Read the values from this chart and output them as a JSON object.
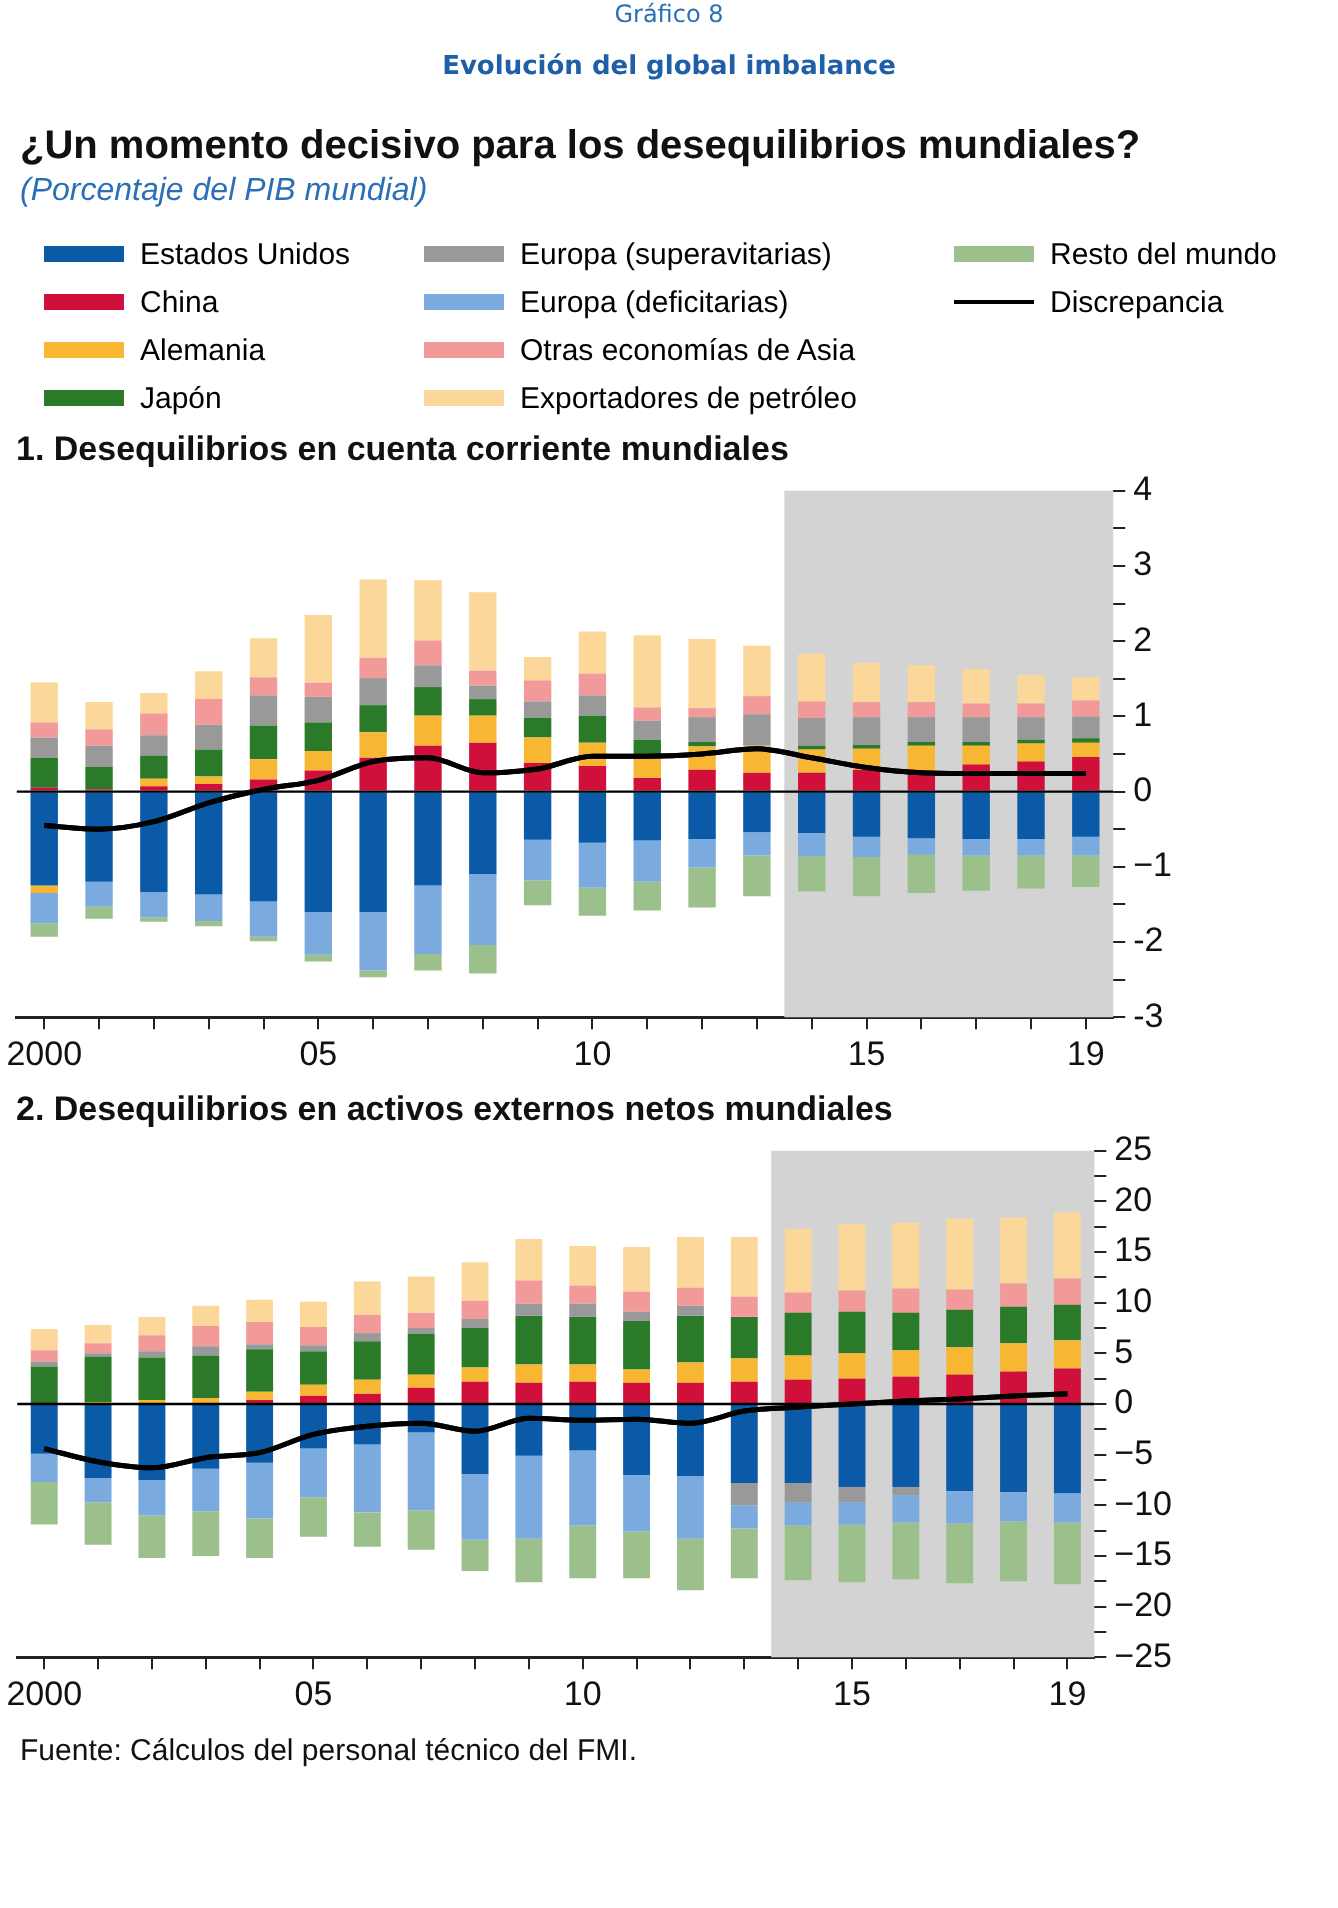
{
  "chart_data": [
    {
      "type": "bar",
      "title": "1. Desequilibrios en cuenta corriente mundiales",
      "annotations": [
        "Gráfico 8",
        "Evolución del global imbalance",
        "¿Un momento decisivo para los desequilibrios mundiales?",
        "(Porcentaje del PIB mundial)"
      ],
      "x": [
        2000,
        2001,
        2002,
        2003,
        2004,
        2005,
        2006,
        2007,
        2008,
        2009,
        2010,
        2011,
        2012,
        2013,
        2014,
        2015,
        2016,
        2017,
        2018,
        2019
      ],
      "xlim": [
        1999.5,
        2019.5
      ],
      "xticks": [
        {
          "value": 2000,
          "label": "2000"
        },
        {
          "value": 2001,
          "label": null
        },
        {
          "value": 2002,
          "label": null
        },
        {
          "value": 2003,
          "label": null
        },
        {
          "value": 2004,
          "label": null
        },
        {
          "value": 2005,
          "label": "05"
        },
        {
          "value": 2006,
          "label": null
        },
        {
          "value": 2007,
          "label": null
        },
        {
          "value": 2008,
          "label": null
        },
        {
          "value": 2009,
          "label": null
        },
        {
          "value": 2010,
          "label": "10"
        },
        {
          "value": 2011,
          "label": null
        },
        {
          "value": 2012,
          "label": null
        },
        {
          "value": 2013,
          "label": null
        },
        {
          "value": 2014,
          "label": null
        },
        {
          "value": 2015,
          "label": "15"
        },
        {
          "value": 2016,
          "label": null
        },
        {
          "value": 2017,
          "label": null
        },
        {
          "value": 2018,
          "label": null
        },
        {
          "value": 2019,
          "label": "19"
        }
      ],
      "ylim": [
        -3,
        4
      ],
      "yticks": [
        -3,
        {
          "value": -2.5,
          "label": null
        },
        -2,
        {
          "value": -1.5,
          "label": null
        },
        {
          "value": -1,
          "label": "−1"
        },
        {
          "value": -0.5,
          "label": null
        },
        0,
        {
          "value": 0.5,
          "label": null
        },
        1,
        {
          "value": 1.5,
          "label": null
        },
        2,
        {
          "value": 2.5,
          "label": null
        },
        3,
        {
          "value": 3.5,
          "label": null
        },
        4
      ],
      "stacked": true,
      "legend": "top",
      "marker": "none",
      "bands": [
        {
          "axis": "x",
          "from": 2013.5,
          "to": 2019.5,
          "color": "#d3d3d3"
        }
      ],
      "ref_lines": [
        {
          "axis": "y",
          "value": 0,
          "color": "#000000"
        }
      ],
      "series": [
        {
          "name": "Estados Unidos",
          "color": "#0a5aa8",
          "values": [
            -1.25,
            -1.2,
            -1.34,
            -1.37,
            -1.46,
            -1.6,
            -1.6,
            -1.25,
            -1.1,
            -0.64,
            -0.68,
            -0.65,
            -0.63,
            -0.54,
            -0.55,
            -0.6,
            -0.62,
            -0.63,
            -0.63,
            -0.6
          ]
        },
        {
          "name": "China",
          "color": "#d0103a",
          "values": [
            0.05,
            0.03,
            0.07,
            0.1,
            0.16,
            0.28,
            0.45,
            0.61,
            0.65,
            0.38,
            0.34,
            0.18,
            0.29,
            0.25,
            0.25,
            0.29,
            0.27,
            0.36,
            0.4,
            0.46
          ]
        },
        {
          "name": "Alemania",
          "color": "#f7b733",
          "values": [
            -0.1,
            0,
            0.1,
            0.1,
            0.27,
            0.26,
            0.34,
            0.4,
            0.36,
            0.34,
            0.31,
            0.29,
            0.31,
            0.36,
            0.31,
            0.28,
            0.34,
            0.25,
            0.24,
            0.19
          ]
        },
        {
          "name": "Japón",
          "color": "#2a7a2a",
          "values": [
            0.4,
            0.3,
            0.31,
            0.36,
            0.45,
            0.38,
            0.36,
            0.38,
            0.22,
            0.26,
            0.36,
            0.22,
            0.06,
            0,
            0.05,
            0.05,
            0.05,
            0.05,
            0.05,
            0.06
          ]
        },
        {
          "name": "Europa (superavitarias)",
          "color": "#999999",
          "values": [
            0.27,
            0.28,
            0.27,
            0.33,
            0.4,
            0.34,
            0.36,
            0.29,
            0.18,
            0.22,
            0.27,
            0.25,
            0.33,
            0.42,
            0.37,
            0.37,
            0.33,
            0.33,
            0.3,
            0.29
          ]
        },
        {
          "name": "Europa (deficitarias)",
          "color": "#7aaade",
          "values": [
            -0.4,
            -0.33,
            -0.33,
            -0.35,
            -0.47,
            -0.57,
            -0.78,
            -0.91,
            -0.94,
            -0.54,
            -0.6,
            -0.55,
            -0.38,
            -0.31,
            -0.31,
            -0.27,
            -0.22,
            -0.22,
            -0.22,
            -0.25
          ]
        },
        {
          "name": "Otras economías de Asia",
          "color": "#f29a9a",
          "values": [
            0.2,
            0.22,
            0.29,
            0.34,
            0.24,
            0.19,
            0.27,
            0.33,
            0.2,
            0.28,
            0.29,
            0.18,
            0.12,
            0.24,
            0.22,
            0.2,
            0.2,
            0.18,
            0.18,
            0.21
          ]
        },
        {
          "name": "Exportadores de petróleo",
          "color": "#fbd89a",
          "values": [
            0.53,
            0.36,
            0.27,
            0.37,
            0.52,
            0.9,
            1.04,
            0.8,
            1.04,
            0.31,
            0.56,
            0.96,
            0.92,
            0.67,
            0.63,
            0.52,
            0.49,
            0.46,
            0.38,
            0.31
          ]
        },
        {
          "name": "Resto del mundo",
          "color": "#9cc08c",
          "values": [
            -0.18,
            -0.16,
            -0.06,
            -0.07,
            -0.06,
            -0.09,
            -0.09,
            -0.22,
            -0.38,
            -0.33,
            -0.37,
            -0.38,
            -0.53,
            -0.54,
            -0.47,
            -0.52,
            -0.51,
            -0.47,
            -0.44,
            -0.42
          ]
        },
        {
          "name": "Discrepancia",
          "type": "line",
          "color": "#000000",
          "values": [
            -0.45,
            -0.5,
            -0.4,
            -0.15,
            0.03,
            0.15,
            0.4,
            0.45,
            0.25,
            0.3,
            0.47,
            0.47,
            0.5,
            0.57,
            0.45,
            0.32,
            0.25,
            0.24,
            0.24,
            0.24
          ]
        }
      ]
    },
    {
      "type": "bar",
      "title": "2. Desequilibrios en activos externos netos mundiales",
      "annotations": [
        "Fuente: Cálculos del personal técnico del FMI."
      ],
      "x": [
        2000,
        2001,
        2002,
        2003,
        2004,
        2005,
        2006,
        2007,
        2008,
        2009,
        2010,
        2011,
        2012,
        2013,
        2014,
        2015,
        2016,
        2017,
        2018,
        2019
      ],
      "xlim": [
        1999.5,
        2019.5
      ],
      "xticks": [
        {
          "value": 2000,
          "label": "2000"
        },
        {
          "value": 2001,
          "label": null
        },
        {
          "value": 2002,
          "label": null
        },
        {
          "value": 2003,
          "label": null
        },
        {
          "value": 2004,
          "label": null
        },
        {
          "value": 2005,
          "label": "05"
        },
        {
          "value": 2006,
          "label": null
        },
        {
          "value": 2007,
          "label": null
        },
        {
          "value": 2008,
          "label": null
        },
        {
          "value": 2009,
          "label": null
        },
        {
          "value": 2010,
          "label": "10"
        },
        {
          "value": 2011,
          "label": null
        },
        {
          "value": 2012,
          "label": null
        },
        {
          "value": 2013,
          "label": null
        },
        {
          "value": 2014,
          "label": null
        },
        {
          "value": 2015,
          "label": "15"
        },
        {
          "value": 2016,
          "label": null
        },
        {
          "value": 2017,
          "label": null
        },
        {
          "value": 2018,
          "label": null
        },
        {
          "value": 2019,
          "label": "19"
        }
      ],
      "ylim": [
        -25,
        25
      ],
      "yticks": [
        {
          "value": -25,
          "label": "−25"
        },
        {
          "value": -22.5,
          "label": null
        },
        {
          "value": -20,
          "label": "−20"
        },
        {
          "value": -17.5,
          "label": null
        },
        {
          "value": -15,
          "label": "−15"
        },
        {
          "value": -12.5,
          "label": null
        },
        {
          "value": -10,
          "label": "−10"
        },
        {
          "value": -7.5,
          "label": null
        },
        {
          "value": -5,
          "label": "−5"
        },
        {
          "value": -2.5,
          "label": null
        },
        0,
        {
          "value": 2.5,
          "label": null
        },
        5,
        {
          "value": 7.5,
          "label": null
        },
        10,
        {
          "value": 12.5,
          "label": null
        },
        15,
        {
          "value": 17.5,
          "label": null
        },
        20,
        {
          "value": 22.5,
          "label": null
        },
        25
      ],
      "stacked": true,
      "marker": "none",
      "bands": [
        {
          "axis": "x",
          "from": 2013.5,
          "to": 2019.5,
          "color": "#d3d3d3"
        }
      ],
      "ref_lines": [
        {
          "axis": "y",
          "value": 0,
          "color": "#000000"
        }
      ],
      "series": [
        {
          "color": "#0a5aa8",
          "values": [
            -4.9,
            -7.3,
            -7.5,
            -6.4,
            -5.8,
            -4.4,
            -4.0,
            -2.8,
            -6.9,
            -5.1,
            -4.6,
            -7.0,
            -7.1,
            -7.8,
            -7.8,
            -8.2,
            -8.2,
            -8.6,
            -8.7,
            -8.8
          ]
        },
        {
          "color": "#d0103a",
          "values": [
            0,
            0,
            0,
            0,
            0.4,
            0.8,
            1.0,
            1.6,
            2.2,
            2.1,
            2.2,
            2.1,
            2.1,
            2.2,
            2.4,
            2.5,
            2.7,
            2.9,
            3.2,
            3.5
          ]
        },
        {
          "color": "#f7b733",
          "values": [
            0,
            0.2,
            0.4,
            0.6,
            0.8,
            1.1,
            1.4,
            1.3,
            1.4,
            1.8,
            1.7,
            1.3,
            2.0,
            2.3,
            2.4,
            2.5,
            2.6,
            2.7,
            2.8,
            2.8
          ]
        },
        {
          "color": "#2a7a2a",
          "values": [
            3.7,
            4.5,
            4.2,
            4.2,
            4.2,
            3.3,
            3.8,
            4.0,
            3.9,
            4.8,
            4.7,
            4.8,
            4.6,
            4.1,
            4.2,
            4.1,
            3.7,
            3.7,
            3.6,
            3.5
          ]
        },
        {
          "color": "#999999",
          "values": [
            0.5,
            0.3,
            0.6,
            0.9,
            0.5,
            0.6,
            0.8,
            0.6,
            0.9,
            1.2,
            1.3,
            0.9,
            1.0,
            -2.2,
            -1.9,
            -1.5,
            -0.8,
            0,
            0,
            0
          ]
        },
        {
          "color": "#7aaade",
          "values": [
            -2.8,
            -2.4,
            -3.5,
            -4.2,
            -5.5,
            -4.8,
            -6.7,
            -7.7,
            -6.5,
            -8.2,
            -7.4,
            -5.6,
            -6.2,
            -2.3,
            -2.3,
            -2.2,
            -2.7,
            -3.2,
            -2.9,
            -2.9
          ]
        },
        {
          "color": "#f29a9a",
          "values": [
            1.1,
            1.0,
            1.6,
            2.0,
            2.2,
            1.8,
            1.8,
            1.5,
            1.8,
            2.3,
            1.8,
            2.0,
            1.8,
            2.0,
            2.0,
            2.1,
            2.4,
            2.0,
            2.3,
            2.6
          ]
        },
        {
          "color": "#fbd89a",
          "values": [
            2.1,
            1.8,
            1.8,
            2.0,
            2.2,
            2.5,
            3.3,
            3.6,
            3.8,
            4.1,
            3.9,
            4.4,
            5.0,
            5.9,
            6.3,
            6.6,
            6.5,
            7.0,
            6.5,
            6.5
          ]
        },
        {
          "color": "#9cc08c",
          "values": [
            -4.2,
            -4.2,
            -4.2,
            -4.4,
            -3.9,
            -3.9,
            -3.4,
            -3.9,
            -3.1,
            -4.3,
            -5.2,
            -4.6,
            -5.1,
            -4.9,
            -5.4,
            -5.7,
            -5.6,
            -5.9,
            -5.9,
            -6.1
          ]
        },
        {
          "type": "line",
          "color": "#000000",
          "values": [
            -4.4,
            -5.7,
            -6.3,
            -5.3,
            -4.8,
            -3.0,
            -2.2,
            -1.9,
            -2.7,
            -1.4,
            -1.6,
            -1.5,
            -1.9,
            -0.7,
            -0.3,
            0,
            0.3,
            0.5,
            0.8,
            1.0
          ]
        }
      ]
    }
  ]
}
